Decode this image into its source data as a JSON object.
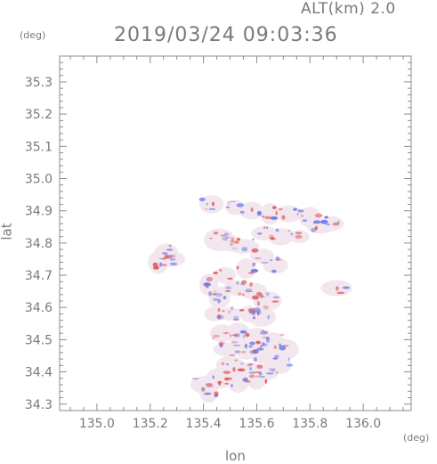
{
  "header": {
    "altitude_label": "ALT(km)  2.0",
    "datetime": "2019/03/24  09:03:36"
  },
  "axes": {
    "y_unit": "(deg)",
    "x_unit": "(deg)",
    "y_title": "lat",
    "x_title": "lon",
    "x_ticks": [
      "135.0",
      "135.2",
      "135.4",
      "135.6",
      "135.8",
      "136.0"
    ],
    "y_ticks": [
      "35.3",
      "35.2",
      "35.1",
      "35.0",
      "34.9",
      "34.8",
      "34.7",
      "34.6",
      "34.5",
      "34.4",
      "34.3"
    ]
  },
  "colors": {
    "frame": "#8c8c8c",
    "text": "#7a7a7a",
    "positive": "#e05a5a",
    "negative": "#6a78e8",
    "neutral": "#f3e7ef"
  },
  "chart_data": {
    "type": "heatmap",
    "xlabel": "lon",
    "ylabel": "lat",
    "xlim": [
      134.86,
      136.18
    ],
    "ylim": [
      34.28,
      35.38
    ],
    "region_points": [
      [
        135.43,
        34.92
      ],
      [
        135.52,
        34.91
      ],
      [
        135.58,
        34.9
      ],
      [
        135.65,
        34.89
      ],
      [
        135.72,
        34.89
      ],
      [
        135.8,
        34.88
      ],
      [
        135.84,
        34.85
      ],
      [
        135.88,
        34.86
      ],
      [
        135.63,
        34.83
      ],
      [
        135.69,
        34.82
      ],
      [
        135.76,
        34.82
      ],
      [
        135.46,
        34.81
      ],
      [
        135.5,
        34.8
      ],
      [
        135.55,
        34.79
      ],
      [
        135.26,
        34.77
      ],
      [
        135.28,
        34.75
      ],
      [
        135.23,
        34.74
      ],
      [
        135.62,
        34.76
      ],
      [
        135.67,
        34.73
      ],
      [
        135.56,
        34.72
      ],
      [
        135.48,
        34.7
      ],
      [
        135.42,
        34.67
      ],
      [
        135.46,
        34.63
      ],
      [
        135.52,
        34.66
      ],
      [
        135.59,
        34.65
      ],
      [
        135.64,
        34.62
      ],
      [
        135.44,
        34.58
      ],
      [
        135.5,
        34.58
      ],
      [
        135.57,
        34.58
      ],
      [
        135.62,
        34.57
      ],
      [
        135.9,
        34.66
      ],
      [
        135.47,
        34.52
      ],
      [
        135.53,
        34.52
      ],
      [
        135.6,
        34.51
      ],
      [
        135.66,
        34.5
      ],
      [
        135.49,
        34.47
      ],
      [
        135.56,
        34.47
      ],
      [
        135.63,
        34.46
      ],
      [
        135.7,
        34.47
      ],
      [
        135.5,
        34.42
      ],
      [
        135.57,
        34.41
      ],
      [
        135.64,
        34.4
      ],
      [
        135.69,
        34.42
      ],
      [
        135.46,
        34.38
      ],
      [
        135.53,
        34.37
      ],
      [
        135.6,
        34.37
      ],
      [
        135.4,
        34.36
      ],
      [
        135.42,
        34.34
      ]
    ]
  }
}
